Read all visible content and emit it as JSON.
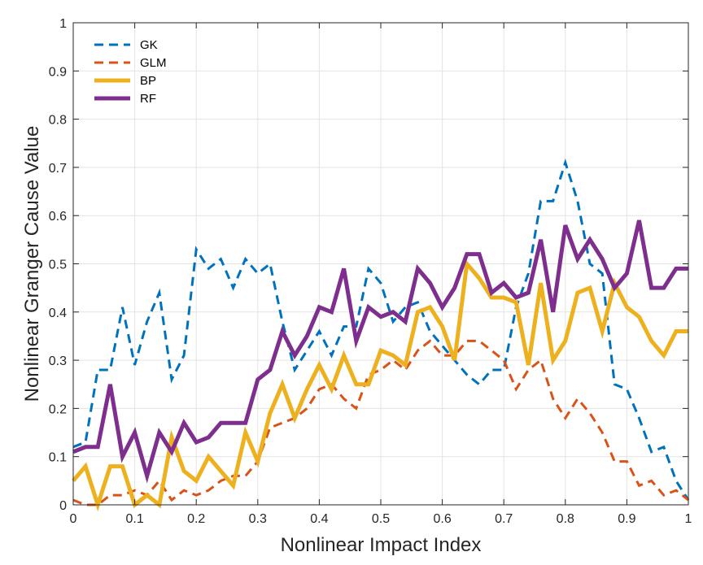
{
  "chart_data": {
    "type": "line",
    "xlabel": "Nonlinear Impact Index",
    "ylabel": "Nonlinear Granger Cause Value",
    "xlim": [
      0,
      1
    ],
    "ylim": [
      0,
      1
    ],
    "xticks": [
      "0",
      "0.1",
      "0.2",
      "0.3",
      "0.4",
      "0.5",
      "0.6",
      "0.7",
      "0.8",
      "0.9",
      "1"
    ],
    "yticks": [
      "0",
      "0.1",
      "0.2",
      "0.3",
      "0.4",
      "0.5",
      "0.6",
      "0.7",
      "0.8",
      "0.9",
      "1"
    ],
    "grid": true,
    "legend_position": "top-left",
    "x": [
      0,
      0.02,
      0.04,
      0.06,
      0.08,
      0.1,
      0.12,
      0.14,
      0.16,
      0.18,
      0.2,
      0.22,
      0.24,
      0.26,
      0.28,
      0.3,
      0.32,
      0.34,
      0.36,
      0.38,
      0.4,
      0.42,
      0.44,
      0.46,
      0.48,
      0.5,
      0.52,
      0.54,
      0.56,
      0.58,
      0.6,
      0.62,
      0.64,
      0.66,
      0.68,
      0.7,
      0.72,
      0.74,
      0.76,
      0.78,
      0.8,
      0.82,
      0.84,
      0.86,
      0.88,
      0.9,
      0.92,
      0.94,
      0.96,
      0.98,
      1.0
    ],
    "series": [
      {
        "name": "GK",
        "color": "#0072BD",
        "dash": "dashed",
        "values": [
          0.12,
          0.13,
          0.28,
          0.28,
          0.41,
          0.29,
          0.38,
          0.44,
          0.26,
          0.31,
          0.53,
          0.49,
          0.51,
          0.45,
          0.51,
          0.48,
          0.5,
          0.38,
          0.28,
          0.32,
          0.36,
          0.31,
          0.37,
          0.37,
          0.49,
          0.46,
          0.38,
          0.41,
          0.42,
          0.36,
          0.33,
          0.3,
          0.27,
          0.25,
          0.28,
          0.28,
          0.41,
          0.48,
          0.63,
          0.63,
          0.71,
          0.63,
          0.5,
          0.48,
          0.25,
          0.24,
          0.18,
          0.11,
          0.12,
          0.05,
          0.01
        ]
      },
      {
        "name": "GLM",
        "color": "#D95319",
        "dash": "dashed",
        "values": [
          0.01,
          0.0,
          0.0,
          0.02,
          0.02,
          0.03,
          0.02,
          0.05,
          0.01,
          0.03,
          0.02,
          0.03,
          0.05,
          0.06,
          0.06,
          0.09,
          0.16,
          0.17,
          0.18,
          0.2,
          0.24,
          0.25,
          0.22,
          0.2,
          0.27,
          0.28,
          0.3,
          0.28,
          0.32,
          0.34,
          0.31,
          0.31,
          0.34,
          0.34,
          0.32,
          0.3,
          0.24,
          0.28,
          0.3,
          0.22,
          0.18,
          0.22,
          0.19,
          0.15,
          0.09,
          0.09,
          0.04,
          0.05,
          0.02,
          0.03,
          0.01
        ]
      },
      {
        "name": "BP",
        "color": "#EDB120",
        "dash": "solid",
        "values": [
          0.05,
          0.08,
          0.0,
          0.08,
          0.08,
          0.0,
          0.02,
          0.0,
          0.14,
          0.07,
          0.05,
          0.1,
          0.07,
          0.04,
          0.15,
          0.09,
          0.19,
          0.25,
          0.18,
          0.24,
          0.29,
          0.24,
          0.31,
          0.25,
          0.25,
          0.32,
          0.31,
          0.29,
          0.4,
          0.41,
          0.37,
          0.3,
          0.5,
          0.47,
          0.43,
          0.43,
          0.42,
          0.29,
          0.46,
          0.3,
          0.34,
          0.44,
          0.45,
          0.36,
          0.46,
          0.41,
          0.39,
          0.34,
          0.31,
          0.36,
          0.36
        ]
      },
      {
        "name": "RF",
        "color": "#7E2F8E",
        "dash": "solid",
        "values": [
          0.11,
          0.12,
          0.12,
          0.25,
          0.1,
          0.15,
          0.06,
          0.15,
          0.11,
          0.17,
          0.13,
          0.14,
          0.17,
          0.17,
          0.17,
          0.26,
          0.28,
          0.36,
          0.31,
          0.35,
          0.41,
          0.4,
          0.49,
          0.34,
          0.41,
          0.39,
          0.4,
          0.38,
          0.49,
          0.46,
          0.41,
          0.45,
          0.52,
          0.52,
          0.44,
          0.46,
          0.43,
          0.44,
          0.55,
          0.4,
          0.58,
          0.51,
          0.55,
          0.51,
          0.45,
          0.48,
          0.59,
          0.45,
          0.45,
          0.49,
          0.49
        ]
      }
    ]
  }
}
